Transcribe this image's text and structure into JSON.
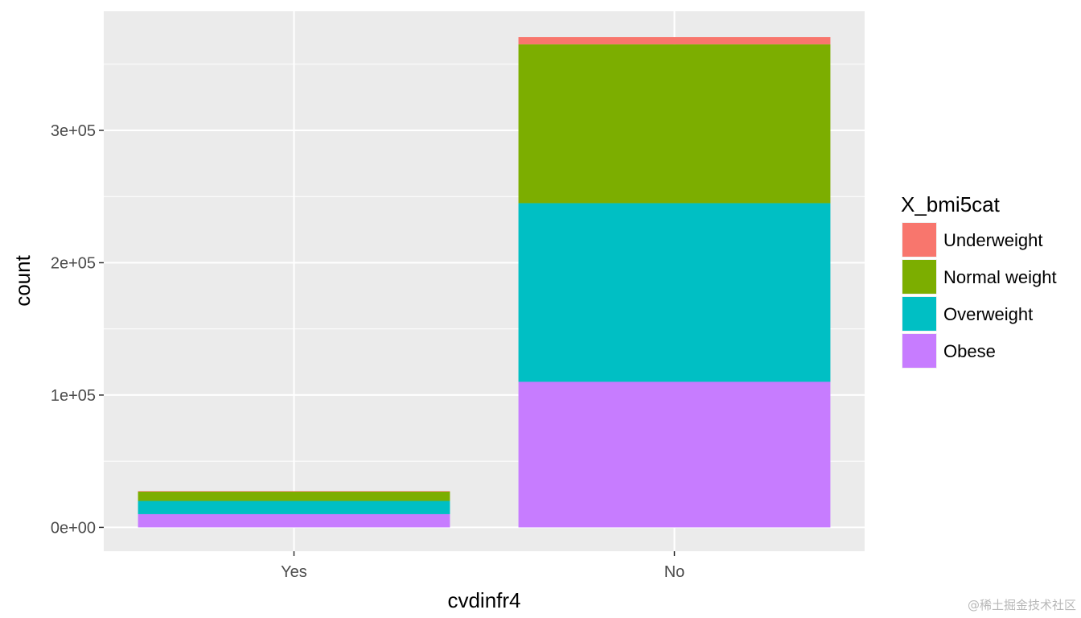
{
  "chart_data": {
    "type": "bar",
    "stacked": true,
    "categories": [
      "Yes",
      "No"
    ],
    "series": [
      {
        "name": "Underweight",
        "color": "#F8766D",
        "values": [
          400,
          5500
        ]
      },
      {
        "name": "Normal weight",
        "color": "#7CAE00",
        "values": [
          7000,
          120000
        ]
      },
      {
        "name": "Overweight",
        "color": "#00BFC4",
        "values": [
          10000,
          135000
        ]
      },
      {
        "name": "Obese",
        "color": "#C77CFF",
        "values": [
          10000,
          110000
        ]
      }
    ],
    "xlabel": "cvdinfr4",
    "ylabel": "count",
    "ylim": [
      -18000,
      390000
    ],
    "yticks": [
      0,
      100000,
      200000,
      300000
    ],
    "ytick_labels": [
      "0e+00",
      "1e+05",
      "2e+05",
      "3e+05"
    ],
    "grid": true,
    "legend": {
      "title": "X_bmi5cat",
      "placement": "right"
    },
    "panel_color": "#EBEBEB"
  },
  "watermark": "@稀土掘金技术社区"
}
